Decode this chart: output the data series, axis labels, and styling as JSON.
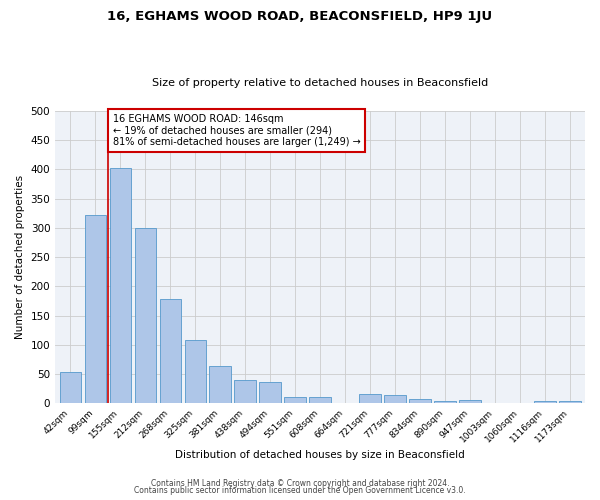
{
  "title": "16, EGHAMS WOOD ROAD, BEACONSFIELD, HP9 1JU",
  "subtitle": "Size of property relative to detached houses in Beaconsfield",
  "xlabel": "Distribution of detached houses by size in Beaconsfield",
  "ylabel": "Number of detached properties",
  "categories": [
    "42sqm",
    "99sqm",
    "155sqm",
    "212sqm",
    "268sqm",
    "325sqm",
    "381sqm",
    "438sqm",
    "494sqm",
    "551sqm",
    "608sqm",
    "664sqm",
    "721sqm",
    "777sqm",
    "834sqm",
    "890sqm",
    "947sqm",
    "1003sqm",
    "1060sqm",
    "1116sqm",
    "1173sqm"
  ],
  "values": [
    53,
    322,
    403,
    300,
    178,
    108,
    64,
    40,
    36,
    11,
    11,
    0,
    16,
    15,
    8,
    5,
    6,
    1,
    0,
    4,
    5
  ],
  "bar_color": "#aec6e8",
  "bar_edge_color": "#5599cc",
  "property_line_x": 1.5,
  "annotation_line1": "16 EGHAMS WOOD ROAD: 146sqm",
  "annotation_line2": "← 19% of detached houses are smaller (294)",
  "annotation_line3": "81% of semi-detached houses are larger (1,249) →",
  "annotation_box_color": "#ffffff",
  "annotation_box_edge_color": "#cc0000",
  "vline_color": "#cc0000",
  "ylim": [
    0,
    500
  ],
  "yticks": [
    0,
    50,
    100,
    150,
    200,
    250,
    300,
    350,
    400,
    450,
    500
  ],
  "grid_color": "#cccccc",
  "bg_color": "#eef2f8",
  "footer_line1": "Contains HM Land Registry data © Crown copyright and database right 2024.",
  "footer_line2": "Contains public sector information licensed under the Open Government Licence v3.0."
}
